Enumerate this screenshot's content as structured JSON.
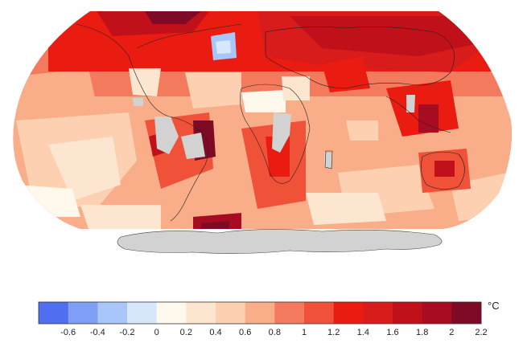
{
  "legend": {
    "unit": "°C",
    "tick_labels": [
      "-0.6",
      "-0.4",
      "-0.2",
      "0",
      "0.2",
      "0.4",
      "0.6",
      "0.8",
      "1",
      "1.2",
      "1.4",
      "1.6",
      "1.8",
      "2",
      "2.2"
    ],
    "colors": [
      "#4f6ff0",
      "#7f9ff6",
      "#a9c6fb",
      "#d7e8fd",
      "#fff8ec",
      "#fde6d0",
      "#fcd0b0",
      "#f9ad88",
      "#f37a5d",
      "#ef5239",
      "#ea1c12",
      "#d81b1b",
      "#c0101a",
      "#a80c22",
      "#7e0a25"
    ]
  },
  "map": {
    "missing_data_color": "#d2d2d2",
    "projection": "robinson"
  }
}
